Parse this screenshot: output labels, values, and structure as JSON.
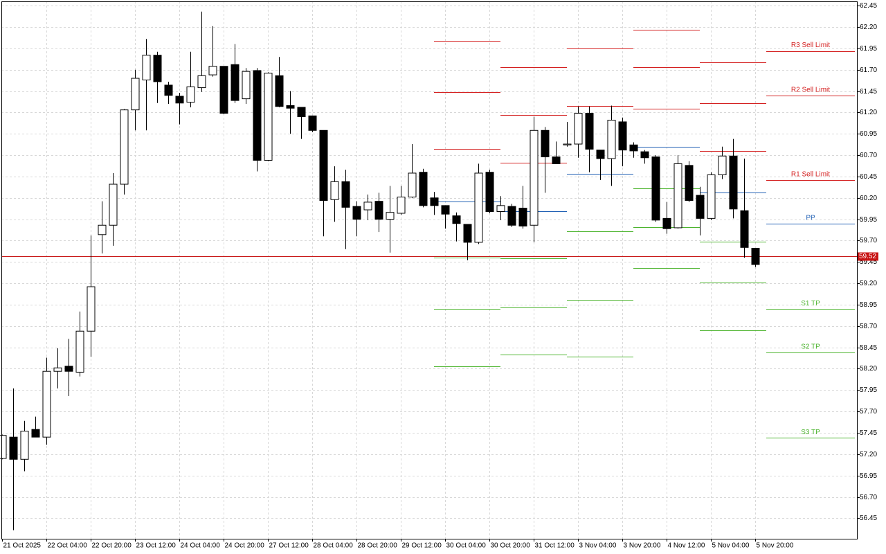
{
  "chart_data": {
    "type": "candlestick",
    "categories": [
      "21 Oct 2025",
      null,
      null,
      null,
      "22 Oct 04:00",
      null,
      null,
      null,
      "22 Oct 20:00",
      null,
      null,
      null,
      "23 Oct 12:00",
      null,
      null,
      null,
      "24 Oct 04:00",
      null,
      null,
      null,
      "24 Oct 20:00",
      null,
      null,
      null,
      "27 Oct 12:00",
      null,
      null,
      null,
      "28 Oct 04:00",
      null,
      null,
      null,
      "28 Oct 20:00",
      null,
      null,
      null,
      "29 Oct 12:00",
      null,
      null,
      null,
      "30 Oct 04:00",
      null,
      null,
      null,
      "30 Oct 20:00",
      null,
      null,
      null,
      "31 Oct 12:00",
      null,
      null,
      null,
      "3 Nov 04:00",
      null,
      null,
      null,
      "3 Nov 20:00",
      null,
      null,
      null,
      "4 Nov 12:00",
      null,
      null,
      null,
      "5 Nov 04:00",
      null,
      null,
      null,
      "5 Nov 20:00"
    ],
    "open": [
      57.15,
      57.4,
      57.14,
      57.49,
      57.4,
      58.17,
      58.23,
      58.16,
      58.64,
      59.77,
      59.88,
      60.36,
      61.23,
      61.58,
      61.87,
      61.52,
      61.39,
      61.32,
      61.49,
      61.64,
      61.74,
      61.76,
      61.36,
      61.69,
      60.64,
      61.63,
      61.28,
      61.26,
      61.16,
      60.99,
      60.18,
      60.39,
      60.1,
      60.06,
      60.16,
      59.95,
      60.02,
      60.21,
      60.5,
      60.2,
      60.11,
      59.99,
      59.89,
      59.68,
      60.5,
      60.04,
      60.1,
      60.08,
      59.88,
      60.99,
      60.68,
      60.82,
      60.83,
      61.19,
      60.76,
      60.66,
      61.09,
      60.82,
      60.74,
      60.68,
      59.96,
      59.85,
      60.58,
      60.23,
      59.96,
      60.47,
      60.69,
      60.05,
      59.61
    ],
    "high": [
      57.43,
      57.97,
      57.59,
      57.64,
      58.33,
      58.44,
      58.55,
      58.87,
      59.76,
      60.16,
      60.49,
      61.24,
      61.7,
      62.06,
      61.91,
      61.56,
      61.43,
      61.91,
      62.38,
      62.21,
      61.74,
      62.0,
      61.72,
      61.72,
      61.67,
      61.85,
      61.45,
      61.26,
      61.16,
      60.99,
      60.57,
      60.53,
      60.16,
      60.24,
      60.26,
      60.34,
      60.34,
      60.83,
      60.54,
      60.27,
      60.11,
      60.03,
      59.89,
      60.6,
      60.53,
      60.22,
      60.13,
      60.34,
      61.15,
      61.03,
      60.86,
      61.09,
      61.27,
      61.27,
      60.76,
      61.28,
      61.14,
      60.85,
      60.76,
      60.7,
      60.15,
      60.7,
      60.63,
      60.33,
      60.5,
      60.8,
      60.89,
      60.66,
      59.61
    ],
    "low": [
      57.14,
      56.31,
      57.0,
      57.4,
      57.31,
      57.97,
      57.88,
      58.11,
      58.34,
      59.55,
      59.64,
      60.24,
      60.99,
      60.99,
      61.31,
      61.3,
      61.06,
      61.26,
      61.44,
      61.62,
      61.18,
      61.31,
      61.3,
      60.51,
      60.63,
      61.26,
      60.95,
      60.89,
      60.97,
      59.75,
      59.92,
      59.6,
      59.75,
      59.94,
      59.8,
      59.56,
      60.0,
      60.2,
      60.09,
      60.0,
      59.84,
      59.69,
      59.47,
      59.66,
      60.02,
      59.94,
      59.86,
      59.84,
      59.68,
      60.26,
      60.6,
      60.8,
      60.67,
      60.5,
      60.41,
      60.34,
      60.57,
      60.67,
      60.6,
      59.92,
      59.78,
      59.84,
      60.15,
      59.76,
      59.94,
      60.42,
      59.96,
      59.5,
      59.39
    ],
    "close": [
      57.42,
      57.14,
      57.47,
      57.4,
      58.17,
      58.21,
      58.17,
      58.64,
      59.16,
      59.88,
      60.36,
      61.23,
      61.6,
      61.87,
      61.56,
      61.4,
      61.31,
      61.5,
      61.63,
      61.74,
      61.19,
      61.34,
      61.68,
      60.64,
      61.66,
      61.27,
      61.25,
      61.15,
      60.99,
      60.17,
      60.39,
      60.09,
      59.95,
      60.15,
      59.95,
      60.03,
      60.21,
      60.49,
      60.11,
      60.11,
      60.01,
      59.9,
      59.68,
      60.49,
      60.04,
      60.11,
      59.88,
      59.87,
      60.99,
      60.68,
      60.6,
      60.83,
      61.19,
      60.77,
      60.66,
      61.11,
      60.76,
      60.75,
      60.67,
      59.94,
      59.84,
      60.6,
      60.17,
      59.96,
      60.47,
      60.69,
      60.07,
      59.62,
      59.42
    ],
    "up_color": "#ffffff",
    "down_color": "#000000",
    "pivots": {
      "spans": [
        [
          39,
          45
        ],
        [
          45,
          51
        ],
        [
          51,
          57
        ],
        [
          57,
          63
        ],
        [
          63,
          69
        ],
        [
          69,
          77
        ]
      ],
      "series": [
        {
          "name": "R3 Sell Limit",
          "color": "#d42020",
          "values": [
            62.04,
            61.73,
            null,
            62.17,
            61.79,
            61.92
          ]
        },
        {
          "name": "R2 Sell Limit",
          "color": "#d42020",
          "values": [
            61.44,
            61.17,
            61.95,
            61.73,
            61.31,
            61.4
          ]
        },
        {
          "name": "R1 Sell Limit",
          "color": "#d42020",
          "values": [
            60.77,
            60.61,
            61.28,
            61.24,
            60.75,
            60.41
          ]
        },
        {
          "name": "PP",
          "color": "#1f5fb4",
          "values": [
            60.16,
            60.04,
            60.48,
            60.8,
            60.26,
            59.9
          ]
        },
        {
          "name": "S1 TP",
          "color": "#4cb42e",
          "values": [
            59.5,
            59.49,
            59.81,
            60.31,
            59.69,
            58.9
          ]
        },
        {
          "name": "S2 TP",
          "color": "#4cb42e",
          "values": [
            58.9,
            58.92,
            59.01,
            59.86,
            59.21,
            58.39
          ]
        },
        {
          "name": "S3 TP",
          "color": "#4cb42e",
          "values": [
            58.23,
            58.37,
            58.34,
            59.38,
            58.65,
            57.39
          ]
        }
      ]
    },
    "current_price": 59.52,
    "current_price_color": "#c81414",
    "ylim": [
      56.21,
      62.5
    ],
    "yticks": [
      56.45,
      {
        "value": 56.7,
        "label": "56.70"
      },
      56.95,
      {
        "value": 57.2,
        "label": "57.20"
      },
      57.45,
      {
        "value": 57.7,
        "label": "57.70"
      },
      57.95,
      {
        "value": 58.2,
        "label": "58.20"
      },
      58.45,
      {
        "value": 58.7,
        "label": "58.70"
      },
      58.95,
      {
        "value": 59.2,
        "label": "59.20"
      },
      59.45,
      {
        "value": 59.7,
        "label": "59.70"
      },
      59.95,
      {
        "value": 60.2,
        "label": "60.20"
      },
      60.45,
      {
        "value": 60.7,
        "label": "60.70"
      },
      60.95,
      {
        "value": 61.2,
        "label": "61.20"
      },
      61.45,
      {
        "value": 61.7,
        "label": "61.70"
      },
      61.95,
      {
        "value": 62.2,
        "label": "62.20"
      },
      62.45
    ],
    "grid": true
  }
}
